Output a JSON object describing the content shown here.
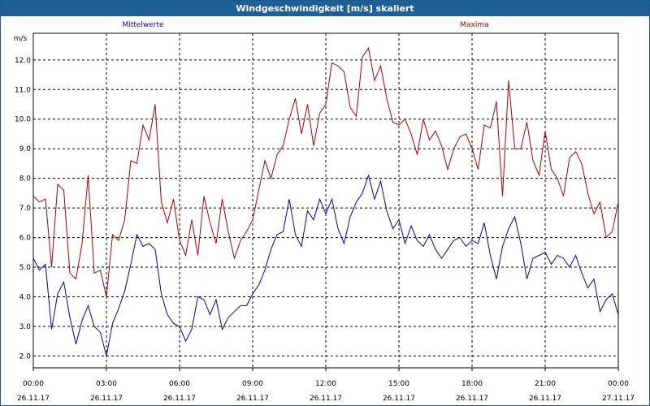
{
  "window": {
    "title": "Windgeschwindigkeit [m/s] skaliert"
  },
  "chart_data": {
    "type": "line",
    "ylabel": "m/s",
    "ylim": [
      1.6,
      12.9
    ],
    "yticks": [
      "2.0",
      "3.0",
      "4.0",
      "5.0",
      "6.0",
      "7.0",
      "8.0",
      "9.0",
      "10.0",
      "11.0",
      "12.0"
    ],
    "x_tick_labels": [
      {
        "time": "00:00",
        "date": "26.11.17"
      },
      {
        "time": "03:00",
        "date": "26.11.17"
      },
      {
        "time": "06:00",
        "date": "26.11.17"
      },
      {
        "time": "09:00",
        "date": "26.11.17"
      },
      {
        "time": "12:00",
        "date": "26.11.17"
      },
      {
        "time": "15:00",
        "date": "26.11.17"
      },
      {
        "time": "18:00",
        "date": "26.11.17"
      },
      {
        "time": "21:00",
        "date": "26.11.17"
      },
      {
        "time": "00:00",
        "date": "27.11.17"
      }
    ],
    "x_unit": "hours since 26.11.17 00:00",
    "xlim": [
      0,
      24
    ],
    "grid": true,
    "series": [
      {
        "name": "Mittelwerte",
        "color": "#0000aa",
        "x": [
          0,
          0.25,
          0.5,
          0.75,
          1,
          1.25,
          1.5,
          1.75,
          2,
          2.25,
          2.5,
          2.75,
          3,
          3.25,
          3.5,
          3.75,
          4,
          4.25,
          4.5,
          4.75,
          5,
          5.25,
          5.5,
          5.75,
          6,
          6.25,
          6.5,
          6.75,
          7,
          7.25,
          7.5,
          7.75,
          8,
          8.25,
          8.5,
          8.75,
          9,
          9.25,
          9.5,
          9.75,
          10,
          10.25,
          10.5,
          10.75,
          11,
          11.25,
          11.5,
          11.75,
          12,
          12.25,
          12.5,
          12.75,
          13,
          13.25,
          13.5,
          13.75,
          14,
          14.25,
          14.5,
          14.75,
          15,
          15.25,
          15.5,
          15.75,
          16,
          16.25,
          16.5,
          16.75,
          17,
          17.25,
          17.5,
          17.75,
          18,
          18.25,
          18.5,
          18.75,
          19,
          19.25,
          19.5,
          19.75,
          20,
          20.25,
          20.5,
          20.75,
          21,
          21.25,
          21.5,
          21.75,
          22,
          22.25,
          22.5,
          22.75,
          23,
          23.25,
          23.5,
          23.75,
          24
        ],
        "values": [
          5.3,
          4.9,
          5.1,
          2.9,
          4.1,
          4.5,
          3.3,
          2.4,
          3.2,
          3.7,
          3.0,
          2.8,
          2.0,
          3.1,
          3.6,
          4.2,
          5.1,
          6.1,
          5.7,
          5.8,
          5.6,
          4.1,
          3.4,
          3.1,
          3.0,
          2.5,
          2.9,
          4.0,
          3.9,
          3.4,
          3.9,
          2.9,
          3.3,
          3.5,
          3.7,
          3.7,
          4.1,
          4.4,
          4.9,
          5.6,
          6.1,
          6.2,
          7.3,
          6.1,
          5.7,
          6.9,
          6.6,
          7.3,
          6.8,
          7.3,
          6.3,
          5.8,
          6.7,
          7.2,
          7.5,
          8.1,
          7.3,
          7.9,
          6.9,
          6.3,
          6.6,
          5.8,
          6.4,
          5.9,
          5.7,
          6.1,
          5.6,
          5.3,
          5.6,
          5.9,
          6.0,
          5.7,
          5.9,
          5.8,
          6.5,
          5.4,
          4.6,
          5.7,
          6.3,
          6.7,
          5.8,
          4.6,
          5.3,
          5.4,
          5.5,
          5.1,
          5.4,
          5.3,
          5.0,
          5.4,
          4.8,
          4.3,
          4.6,
          3.5,
          3.9,
          4.1,
          3.4
        ]
      },
      {
        "name": "Maxima",
        "color": "#aa0000",
        "x": [
          0,
          0.25,
          0.5,
          0.75,
          1,
          1.25,
          1.5,
          1.75,
          2,
          2.25,
          2.5,
          2.75,
          3,
          3.25,
          3.5,
          3.75,
          4,
          4.25,
          4.5,
          4.75,
          5,
          5.25,
          5.5,
          5.75,
          6,
          6.25,
          6.5,
          6.75,
          7,
          7.25,
          7.5,
          7.75,
          8,
          8.25,
          8.5,
          8.75,
          9,
          9.25,
          9.5,
          9.75,
          10,
          10.25,
          10.5,
          10.75,
          11,
          11.25,
          11.5,
          11.75,
          12,
          12.25,
          12.5,
          12.75,
          13,
          13.25,
          13.5,
          13.75,
          14,
          14.25,
          14.5,
          14.75,
          15,
          15.25,
          15.5,
          15.75,
          16,
          16.25,
          16.5,
          16.75,
          17,
          17.25,
          17.5,
          17.75,
          18,
          18.25,
          18.5,
          18.75,
          19,
          19.25,
          19.5,
          19.75,
          20,
          20.25,
          20.5,
          20.75,
          21,
          21.25,
          21.5,
          21.75,
          22,
          22.25,
          22.5,
          22.75,
          23,
          23.25,
          23.5,
          23.75,
          24
        ],
        "values": [
          7.4,
          7.2,
          7.3,
          5.0,
          7.8,
          7.6,
          4.8,
          4.6,
          5.8,
          8.1,
          4.8,
          4.9,
          4.0,
          6.1,
          5.9,
          6.6,
          8.6,
          8.5,
          9.8,
          9.3,
          10.5,
          7.2,
          6.5,
          7.3,
          5.9,
          5.4,
          6.6,
          5.4,
          7.4,
          6.5,
          5.8,
          7.3,
          6.2,
          5.3,
          5.9,
          6.2,
          6.6,
          7.6,
          8.6,
          8.0,
          8.8,
          9.1,
          10.0,
          10.7,
          9.5,
          10.5,
          9.1,
          10.2,
          10.5,
          11.9,
          11.8,
          11.6,
          10.4,
          10.1,
          12.1,
          12.4,
          11.3,
          11.8,
          10.7,
          9.9,
          9.8,
          10.0,
          9.5,
          8.8,
          10.0,
          9.3,
          9.6,
          9.1,
          8.3,
          9.0,
          9.4,
          9.5,
          9.0,
          8.3,
          9.8,
          9.7,
          10.6,
          7.4,
          11.3,
          9.0,
          9.0,
          9.9,
          8.6,
          8.1,
          9.6,
          8.3,
          8.0,
          7.4,
          8.7,
          8.9,
          8.5,
          7.5,
          6.8,
          7.2,
          6.0,
          6.2,
          7.2
        ]
      }
    ]
  }
}
